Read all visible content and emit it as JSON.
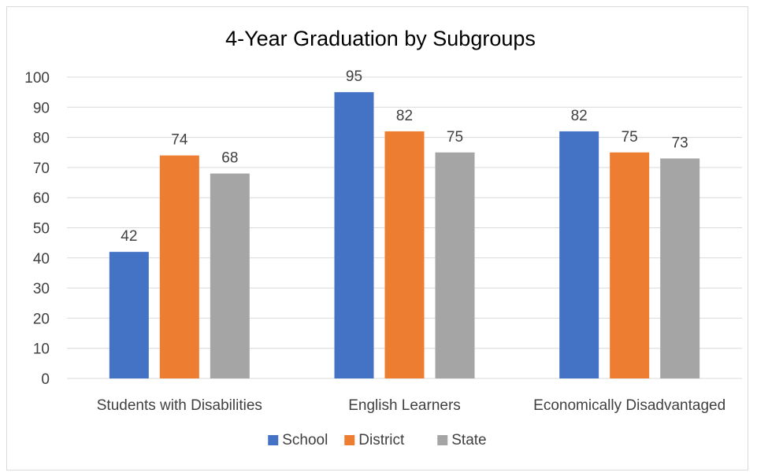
{
  "chart_data": {
    "type": "bar",
    "title": "4-Year Graduation by Subgroups",
    "xlabel": "",
    "ylabel": "",
    "categories": [
      "Students with Disabilities",
      "English Learners",
      "Economically Disadvantaged"
    ],
    "series": [
      {
        "name": "School",
        "values": [
          42,
          95,
          82
        ],
        "color": "#4472c4"
      },
      {
        "name": "District",
        "values": [
          74,
          82,
          75
        ],
        "color": "#ed7d31"
      },
      {
        "name": "State",
        "values": [
          68,
          75,
          73
        ],
        "color": "#a5a5a5"
      }
    ],
    "ylim": [
      0,
      100
    ],
    "yticks": [
      0,
      10,
      20,
      30,
      40,
      50,
      60,
      70,
      80,
      90,
      100
    ],
    "grid": true,
    "legend_position": "bottom",
    "data_labels": true
  }
}
